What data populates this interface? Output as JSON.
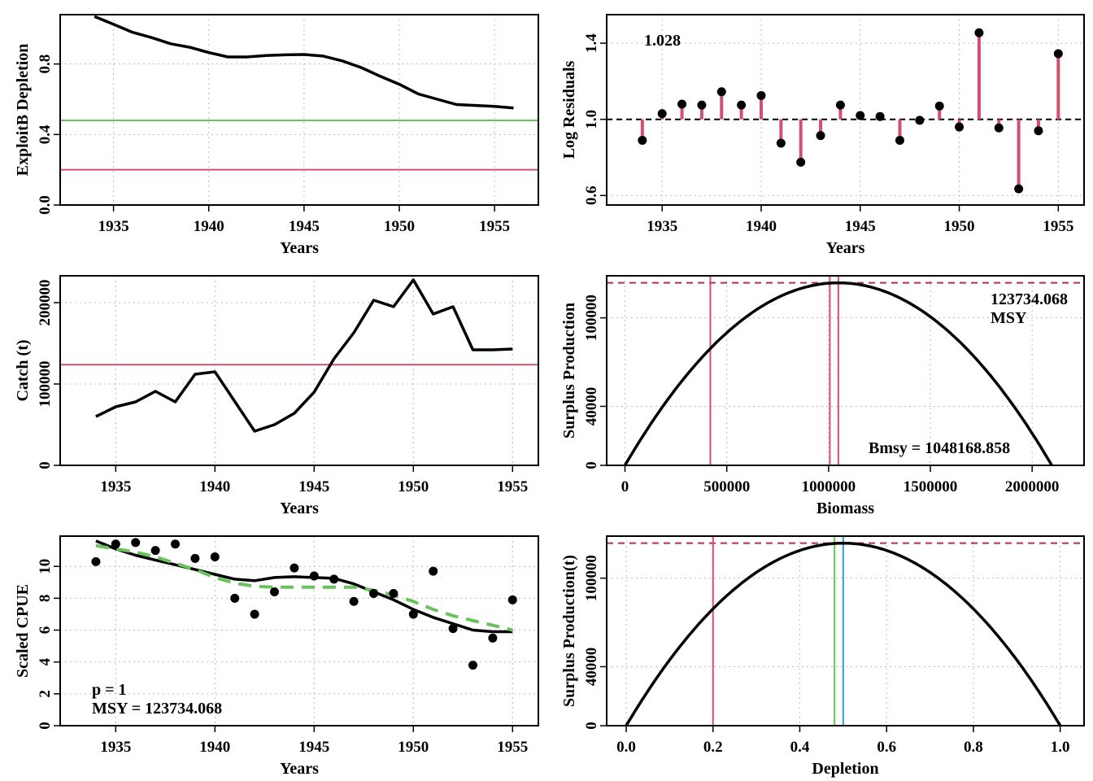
{
  "colors": {
    "black": "#000000",
    "red": "#d55070",
    "green": "#67c35a",
    "blue": "#2f9fd6",
    "grid": "#bbbbbb"
  },
  "chart_data": [
    {
      "id": "p1",
      "type": "line",
      "xlabel": "Years",
      "ylabel": "ExploitB Depletion",
      "xlim": [
        1932.2,
        1957.3
      ],
      "ylim": [
        0,
        1.08
      ],
      "xticks": [
        1935,
        1940,
        1945,
        1950,
        1955
      ],
      "xtick_labels": [
        "1935",
        "1940",
        "1945",
        "1950",
        "1955"
      ],
      "yticks": [
        0.0,
        0.4,
        0.8
      ],
      "ytick_labels": [
        "0.0",
        "0.4",
        "0.8"
      ],
      "x": [
        1934,
        1935,
        1936,
        1937,
        1938,
        1939,
        1940,
        1941,
        1942,
        1943,
        1944,
        1945,
        1946,
        1947,
        1948,
        1949,
        1950,
        1951,
        1952,
        1953,
        1954,
        1955,
        1956
      ],
      "series": [
        {
          "values": [
            1.07,
            1.025,
            0.98,
            0.95,
            0.915,
            0.895,
            0.865,
            0.84,
            0.84,
            0.848,
            0.852,
            0.854,
            0.845,
            0.818,
            0.78,
            0.73,
            0.685,
            0.63,
            0.6,
            0.57,
            0.565,
            0.56,
            0.55
          ],
          "color": "#000000",
          "style": "solid"
        }
      ],
      "hlines": [
        {
          "y": 0.48,
          "color": "#67c35a"
        },
        {
          "y": 0.2,
          "color": "#d55070"
        }
      ]
    },
    {
      "id": "p2",
      "type": "scatter",
      "xlabel": "Years",
      "ylabel": "Log Residuals",
      "xlim": [
        1932.2,
        1956.3
      ],
      "ylim": [
        0.55,
        1.55
      ],
      "xticks": [
        1935,
        1940,
        1945,
        1950,
        1955
      ],
      "xtick_labels": [
        "1935",
        "1940",
        "1945",
        "1950",
        "1955"
      ],
      "yticks": [
        0.6,
        1.0,
        1.4
      ],
      "ytick_labels": [
        "0.6",
        "1.0",
        "1.4"
      ],
      "reference": 1.0,
      "annotation": "1.028",
      "x": [
        1934,
        1935,
        1936,
        1937,
        1938,
        1939,
        1940,
        1941,
        1942,
        1943,
        1944,
        1945,
        1946,
        1947,
        1948,
        1949,
        1950,
        1951,
        1952,
        1953,
        1954,
        1955
      ],
      "values": [
        0.89,
        1.03,
        1.08,
        1.075,
        1.145,
        1.075,
        1.125,
        0.875,
        0.775,
        0.915,
        1.075,
        1.02,
        1.015,
        0.89,
        0.995,
        1.07,
        0.96,
        1.455,
        0.955,
        0.635,
        0.94,
        1.345
      ]
    },
    {
      "id": "p3",
      "type": "line",
      "xlabel": "Years",
      "ylabel": "Catch (t)",
      "xlim": [
        1932.2,
        1956.3
      ],
      "ylim": [
        0,
        233000
      ],
      "xticks": [
        1935,
        1940,
        1945,
        1950,
        1955
      ],
      "xtick_labels": [
        "1935",
        "1940",
        "1945",
        "1950",
        "1955"
      ],
      "yticks": [
        0,
        100000,
        200000
      ],
      "ytick_labels": [
        "0",
        "100000",
        "200000"
      ],
      "x": [
        1934,
        1935,
        1936,
        1937,
        1938,
        1939,
        1940,
        1942,
        1943,
        1944,
        1945,
        1946,
        1947,
        1948,
        1949,
        1950,
        1951,
        1952,
        1953,
        1954,
        1955
      ],
      "series": [
        {
          "values": [
            60000,
            72000,
            78000,
            91000,
            78000,
            112000,
            115000,
            42000,
            50000,
            64000,
            90000,
            131000,
            163000,
            203000,
            195000,
            228000,
            186000,
            195000,
            142000,
            142000,
            143000
          ],
          "color": "#000000",
          "style": "solid"
        }
      ],
      "hlines": [
        {
          "y": 123734,
          "color": "#d55070"
        }
      ]
    },
    {
      "id": "p4",
      "type": "line",
      "xlabel": "Biomass",
      "ylabel": "Surplus Production",
      "xlim": [
        -90000,
        2255000
      ],
      "ylim": [
        0,
        128500
      ],
      "xticks": [
        0,
        500000,
        1000000,
        1500000,
        2000000
      ],
      "xtick_labels": [
        "0",
        "500000",
        "1000000",
        "1500000",
        "2000000"
      ],
      "yticks": [
        0,
        40000,
        100000
      ],
      "ytick_labels": [
        "0",
        "40000",
        "100000"
      ],
      "curve": {
        "kind": "parabola",
        "x0": 0,
        "x1": 2096337.7,
        "peak": 123734.068
      },
      "hlines": [
        {
          "y": 123734.068,
          "color": "#b4304a",
          "style": "dashed"
        }
      ],
      "vlines": [
        {
          "x": 419268,
          "color": "#d55070"
        },
        {
          "x": 1006241,
          "color": "#d55070"
        },
        {
          "x": 1048168.858,
          "color": "#d55070"
        }
      ],
      "annotations": [
        "123734.068",
        "MSY",
        "Bmsy = 1048168.858"
      ]
    },
    {
      "id": "p5",
      "type": "scatter",
      "xlabel": "Years",
      "ylabel": "Scaled CPUE",
      "xlim": [
        1932.2,
        1956.3
      ],
      "ylim": [
        0,
        11.9
      ],
      "xticks": [
        1935,
        1940,
        1945,
        1950,
        1955
      ],
      "xtick_labels": [
        "1935",
        "1940",
        "1945",
        "1950",
        "1955"
      ],
      "yticks": [
        0,
        2,
        4,
        6,
        8,
        10
      ],
      "ytick_labels": [
        "0",
        "2",
        "4",
        "6",
        "8",
        "10"
      ],
      "x": [
        1934,
        1935,
        1936,
        1937,
        1938,
        1939,
        1940,
        1941,
        1942,
        1943,
        1944,
        1945,
        1946,
        1947,
        1948,
        1949,
        1950,
        1951,
        1952,
        1953,
        1954,
        1955
      ],
      "points": [
        10.3,
        11.4,
        11.5,
        11.0,
        11.4,
        10.5,
        10.6,
        8.0,
        7.0,
        8.4,
        9.9,
        9.4,
        9.2,
        7.8,
        8.3,
        8.3,
        7.0,
        9.7,
        6.1,
        3.8,
        5.5,
        7.9
      ],
      "series": [
        {
          "values": [
            11.6,
            11.1,
            10.7,
            10.4,
            10.1,
            9.8,
            9.5,
            9.2,
            9.1,
            9.3,
            9.35,
            9.3,
            9.25,
            8.9,
            8.4,
            7.9,
            7.3,
            6.8,
            6.4,
            6.0,
            5.9,
            5.9
          ],
          "color": "#000000",
          "style": "solid"
        },
        {
          "values": [
            11.3,
            11.1,
            10.9,
            10.6,
            10.2,
            9.8,
            9.3,
            8.95,
            8.75,
            8.7,
            8.7,
            8.7,
            8.7,
            8.7,
            8.5,
            8.2,
            7.8,
            7.3,
            6.9,
            6.6,
            6.3,
            6.0
          ],
          "color": "#67c35a",
          "style": "dashed"
        }
      ],
      "annotations": [
        "p = 1",
        "MSY = 123734.068"
      ]
    },
    {
      "id": "p6",
      "type": "line",
      "xlabel": "Depletion",
      "ylabel": "Surplus Production(t)",
      "xlim": [
        -0.045,
        1.055
      ],
      "ylim": [
        0,
        128500
      ],
      "xticks": [
        0.0,
        0.2,
        0.4,
        0.6,
        0.8,
        1.0
      ],
      "xtick_labels": [
        "0.0",
        "0.2",
        "0.4",
        "0.6",
        "0.8",
        "1.0"
      ],
      "yticks": [
        0,
        40000,
        100000
      ],
      "ytick_labels": [
        "0",
        "40000",
        "100000"
      ],
      "curve": {
        "kind": "parabola",
        "x0": 0,
        "x1": 1.0,
        "peak": 123734.068
      },
      "hlines": [
        {
          "y": 123734.068,
          "color": "#b4304a",
          "style": "dashed"
        }
      ],
      "vlines": [
        {
          "x": 0.2,
          "color": "#d55070"
        },
        {
          "x": 0.48,
          "color": "#67c35a"
        },
        {
          "x": 0.5,
          "color": "#2f9fd6"
        }
      ]
    }
  ]
}
